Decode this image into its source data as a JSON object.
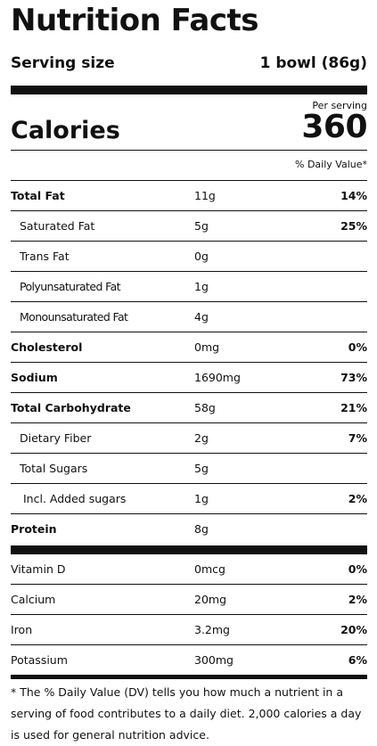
{
  "label": {
    "title": "Nutrition Facts",
    "serving_label": "Serving size",
    "serving_value": "1 bowl (86g)",
    "per_serving": "Per serving",
    "calories_label": "Calories",
    "calories_value": "360",
    "dv_header": "% Daily Value*"
  },
  "nutrients": [
    {
      "name": "Total Fat",
      "amount": "11g",
      "dv": "14%"
    },
    {
      "name": "Saturated Fat",
      "amount": "5g",
      "dv": "25%"
    },
    {
      "name": "Trans Fat",
      "amount": "0g",
      "dv": ""
    },
    {
      "name": "Polyunsaturated Fat",
      "amount": "1g",
      "dv": ""
    },
    {
      "name": "Monounsaturated Fat",
      "amount": "4g",
      "dv": ""
    },
    {
      "name": "Cholesterol",
      "amount": "0mg",
      "dv": "0%"
    },
    {
      "name": "Sodium",
      "amount": "1690mg",
      "dv": "73%"
    },
    {
      "name": "Total Carbohydrate",
      "amount": "58g",
      "dv": "21%"
    },
    {
      "name": "Dietary Fiber",
      "amount": "2g",
      "dv": "7%"
    },
    {
      "name": "Total Sugars",
      "amount": "5g",
      "dv": ""
    },
    {
      "name": "Incl. Added sugars",
      "amount": "1g",
      "dv": "2%"
    },
    {
      "name": "Protein",
      "amount": "8g",
      "dv": ""
    }
  ],
  "vitamins": [
    {
      "name": "Vitamin D",
      "amount": "0mcg",
      "dv": "0%"
    },
    {
      "name": "Calcium",
      "amount": "20mg",
      "dv": "2%"
    },
    {
      "name": "Iron",
      "amount": "3.2mg",
      "dv": "20%"
    },
    {
      "name": "Potassium",
      "amount": "300mg",
      "dv": "6%"
    }
  ],
  "footnote": "* The % Daily Value (DV) tells you how much a nutrient in a serving of food contributes to a daily diet. 2,000 calories a day is used for general nutrition advice."
}
